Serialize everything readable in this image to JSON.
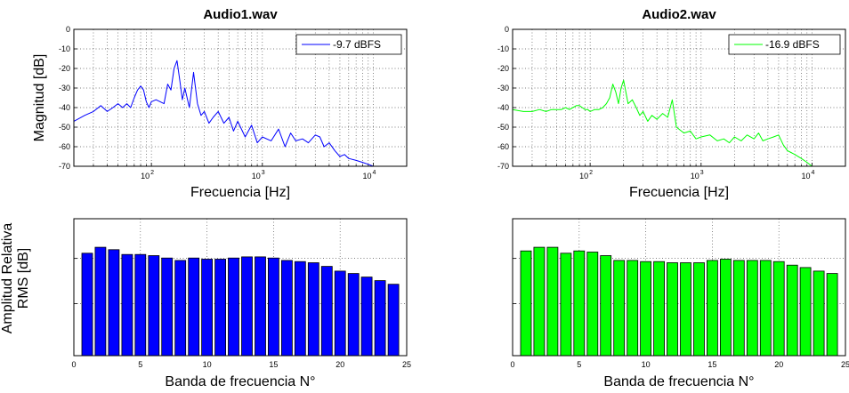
{
  "chart_data": [
    {
      "type": "line",
      "title": "Audio1.wav",
      "xlabel": "Frecuencia [Hz]",
      "ylabel": "Magnitud [dB]",
      "xscale": "log",
      "xlim": [
        20,
        20000
      ],
      "ylim": [
        -70,
        0
      ],
      "yticks": [
        "0",
        "-10",
        "-20",
        "-30",
        "-40",
        "-50",
        "-60",
        "-70"
      ],
      "xticks": [
        {
          "base": "10",
          "exp": "2"
        },
        {
          "base": "10",
          "exp": "3"
        },
        {
          "base": "10",
          "exp": "4"
        }
      ],
      "grid": "dotted",
      "legend_position": "top-right",
      "series": [
        {
          "name": "-9.7 dBFS",
          "color": "#0000ff",
          "x": [
            20,
            25,
            30,
            35,
            40,
            45,
            50,
            55,
            60,
            65,
            70,
            75,
            80,
            85,
            90,
            95,
            100,
            110,
            120,
            130,
            140,
            150,
            160,
            170,
            180,
            190,
            200,
            220,
            240,
            260,
            280,
            300,
            330,
            360,
            400,
            450,
            500,
            550,
            600,
            700,
            800,
            900,
            1000,
            1200,
            1400,
            1600,
            1800,
            2000,
            2300,
            2600,
            3000,
            3300,
            3600,
            4000,
            4500,
            5000,
            5500,
            6000,
            7000,
            8000,
            9000,
            10000
          ],
          "y": [
            -47,
            -44,
            -42,
            -39,
            -42,
            -40,
            -38,
            -40,
            -38,
            -40,
            -35,
            -31,
            -29,
            -31,
            -37,
            -40,
            -37,
            -36,
            -37,
            -38,
            -28,
            -31,
            -20,
            -16,
            -26,
            -36,
            -30,
            -40,
            -22,
            -38,
            -44,
            -42,
            -48,
            -45,
            -42,
            -48,
            -45,
            -52,
            -47,
            -55,
            -49,
            -58,
            -55,
            -57,
            -51,
            -60,
            -53,
            -57,
            -56,
            -58,
            -54,
            -55,
            -60,
            -58,
            -62,
            -65,
            -64,
            -66,
            -67,
            -68,
            -69,
            -70
          ]
        }
      ]
    },
    {
      "type": "line",
      "title": "Audio2.wav",
      "xlabel": "Frecuencia [Hz]",
      "ylabel": "",
      "xscale": "log",
      "xlim": [
        20,
        20000
      ],
      "ylim": [
        -70,
        0
      ],
      "yticks": [
        "0",
        "-10",
        "-20",
        "-30",
        "-40",
        "-50",
        "-60",
        "-70"
      ],
      "xticks": [
        {
          "base": "10",
          "exp": "2"
        },
        {
          "base": "10",
          "exp": "3"
        },
        {
          "base": "10",
          "exp": "4"
        }
      ],
      "grid": "dotted",
      "legend_position": "top-right",
      "series": [
        {
          "name": "-16.9 dBFS",
          "color": "#00ff00",
          "x": [
            20,
            25,
            30,
            35,
            40,
            45,
            50,
            55,
            60,
            65,
            70,
            75,
            80,
            85,
            90,
            95,
            100,
            110,
            120,
            130,
            140,
            150,
            160,
            170,
            180,
            190,
            200,
            220,
            240,
            260,
            280,
            300,
            330,
            360,
            400,
            450,
            500,
            550,
            600,
            700,
            800,
            900,
            1000,
            1200,
            1400,
            1600,
            1800,
            2000,
            2300,
            2600,
            3000,
            3300,
            3600,
            4000,
            4500,
            5000,
            5500,
            6000,
            7000,
            8000,
            9000,
            10000
          ],
          "y": [
            -41,
            -42,
            -42,
            -41,
            -42,
            -41,
            -41,
            -41,
            -40,
            -41,
            -40,
            -39,
            -39,
            -40,
            -41,
            -41,
            -42,
            -41,
            -41,
            -40,
            -38,
            -35,
            -28,
            -32,
            -38,
            -30,
            -26,
            -38,
            -36,
            -40,
            -44,
            -42,
            -47,
            -44,
            -46,
            -43,
            -45,
            -36,
            -50,
            -53,
            -52,
            -56,
            -55,
            -54,
            -57,
            -56,
            -58,
            -55,
            -57,
            -54,
            -56,
            -53,
            -57,
            -56,
            -55,
            -54,
            -59,
            -62,
            -64,
            -66,
            -68,
            -70
          ]
        }
      ]
    },
    {
      "type": "bar",
      "title": "",
      "xlabel": "Banda de frecuencia N°",
      "ylabel_lines": [
        "Amplitud Relativa",
        "RMS [dB]"
      ],
      "xlim": [
        0,
        25
      ],
      "ylim": [
        0,
        115
      ],
      "xticks": [
        "0",
        "5",
        "10",
        "15",
        "20",
        "25"
      ],
      "grid": "dotted",
      "color": "#0000ff",
      "x": [
        1,
        2,
        3,
        4,
        5,
        6,
        7,
        8,
        9,
        10,
        11,
        12,
        13,
        14,
        15,
        16,
        17,
        18,
        19,
        20,
        21,
        22,
        23,
        24
      ],
      "values": [
        86,
        91,
        89,
        85,
        85,
        84,
        82,
        80,
        82,
        81,
        81,
        82,
        83,
        83,
        82,
        80,
        79,
        78,
        75,
        71,
        69,
        66,
        63,
        60
      ]
    },
    {
      "type": "bar",
      "title": "",
      "xlabel": "Banda de frecuencia N°",
      "ylabel_lines": [],
      "xlim": [
        0,
        25
      ],
      "ylim": [
        0,
        115
      ],
      "xticks": [
        "0",
        "5",
        "10",
        "15",
        "20",
        "25"
      ],
      "grid": "dotted",
      "color": "#00ff00",
      "x": [
        1,
        2,
        3,
        4,
        5,
        6,
        7,
        8,
        9,
        10,
        11,
        12,
        13,
        14,
        15,
        16,
        17,
        18,
        19,
        20,
        21,
        22,
        23,
        24
      ],
      "values": [
        88,
        91,
        91,
        86,
        88,
        87,
        84,
        80,
        80,
        79,
        79,
        78,
        78,
        78,
        80,
        81,
        80,
        80,
        80,
        79,
        76,
        74,
        71,
        69
      ]
    }
  ]
}
